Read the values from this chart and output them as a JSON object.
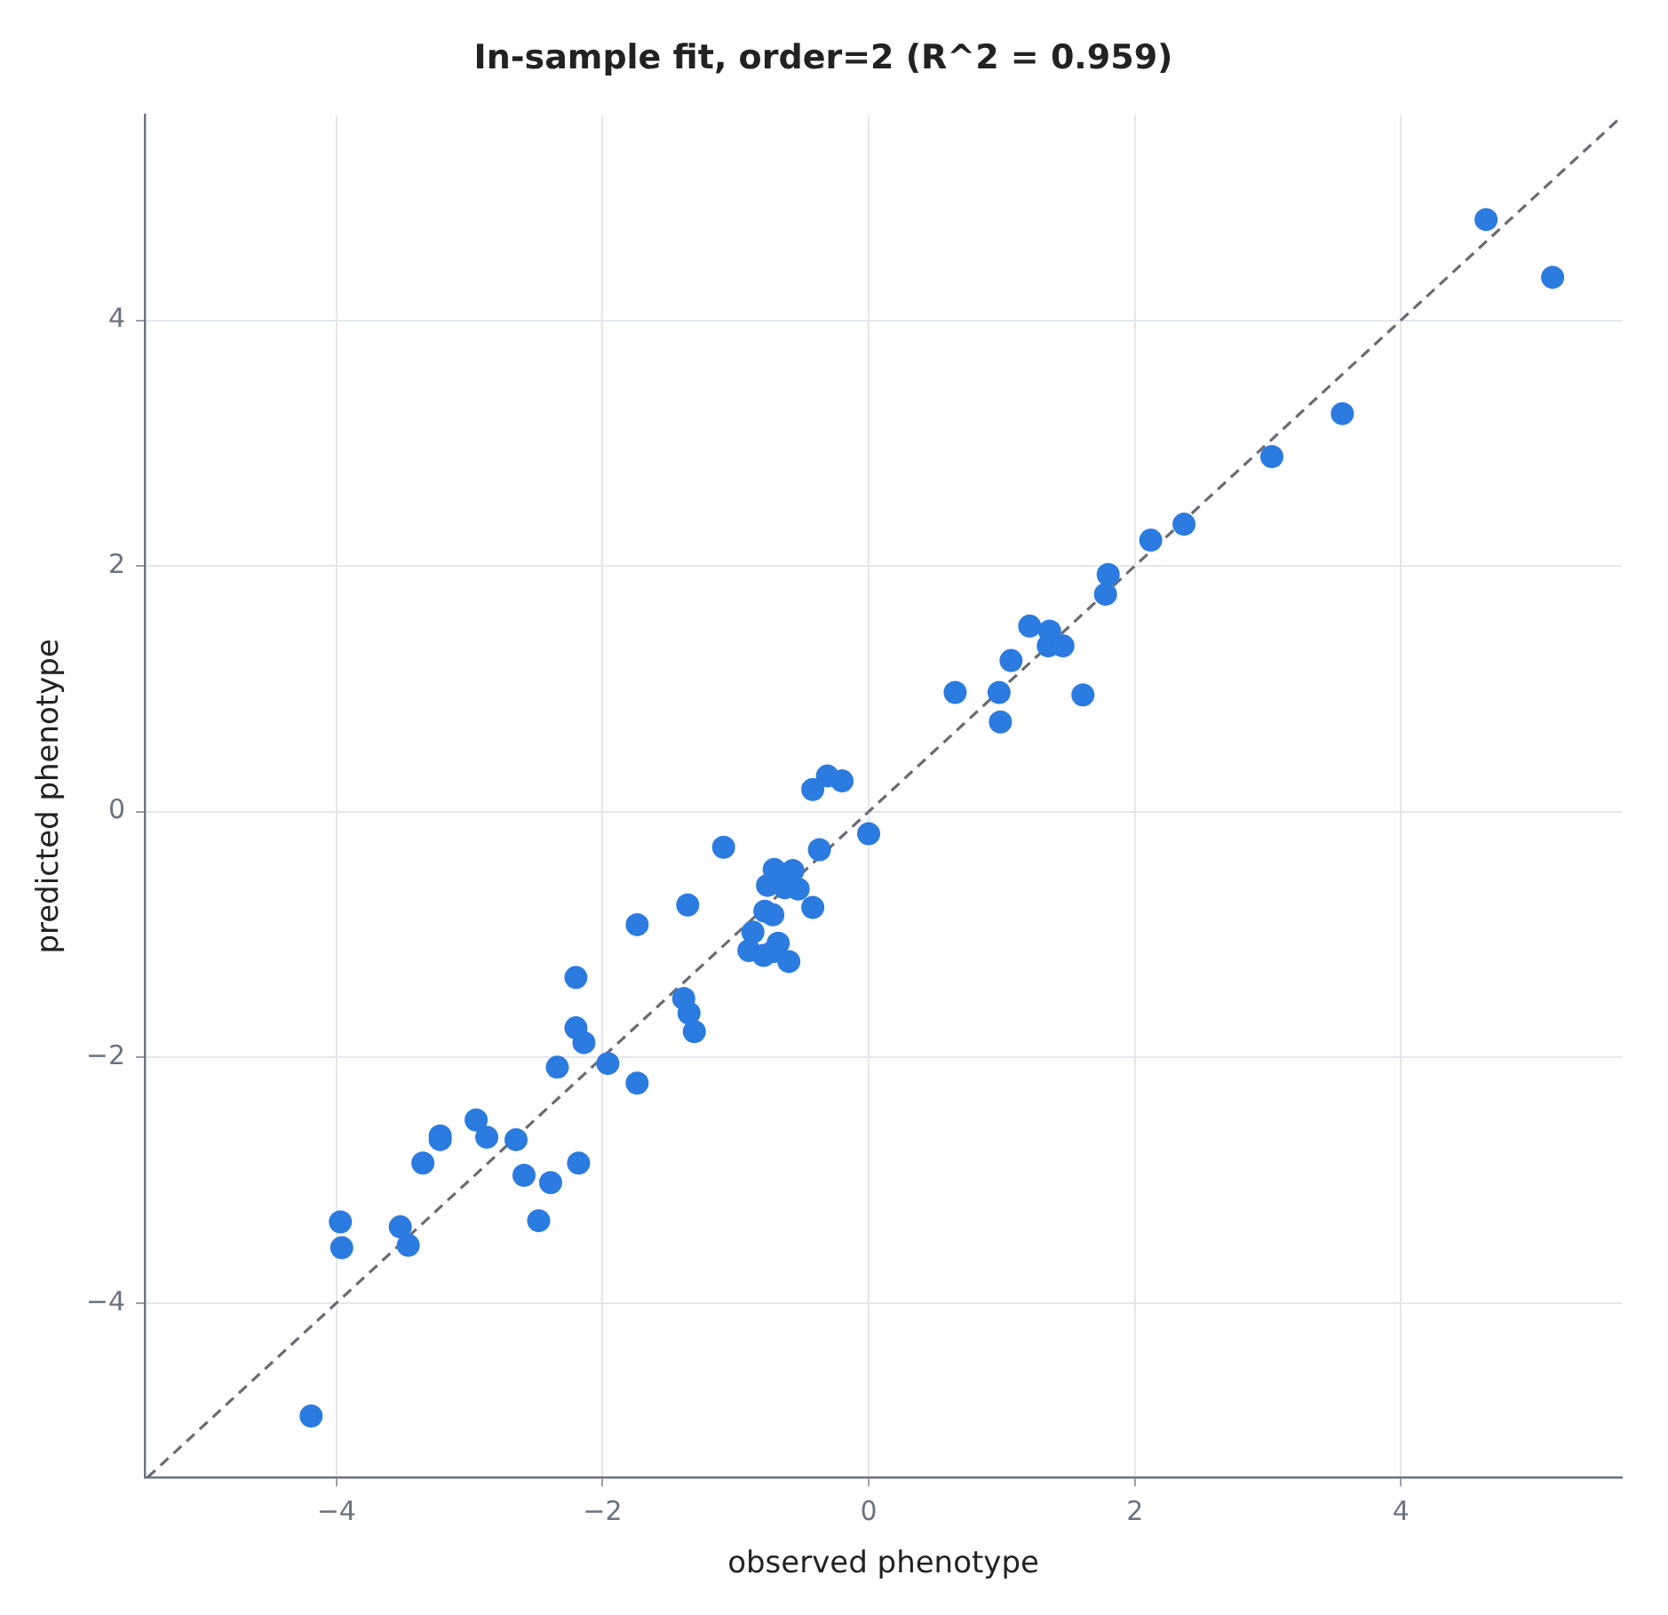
{
  "chart_data": {
    "type": "scatter",
    "title": "In-sample fit, order=2 (R^2 = 0.959)",
    "xlabel": "observed phenotype",
    "ylabel": "predicted phenotype",
    "xlim": [
      -5.44,
      5.66
    ],
    "ylim": [
      -5.42,
      5.67
    ],
    "xticks": [
      -4,
      -2,
      0,
      2,
      4
    ],
    "yticks": [
      -4,
      -2,
      0,
      2,
      4
    ],
    "grid": true,
    "legend": false,
    "series": [
      {
        "type": "scatter",
        "color": "#2b7be0",
        "marker": "circle",
        "x": [
          4.64,
          5.14,
          3.56,
          3.03,
          2.37,
          2.12,
          1.8,
          1.78,
          1.21,
          1.36,
          1.35,
          1.46,
          1.07,
          1.61,
          0.65,
          0.98,
          0.99,
          -0.31,
          -0.2,
          -0.42,
          0.0,
          -1.09,
          -0.37,
          -0.71,
          -0.57,
          -0.76,
          -0.63,
          -0.53,
          -0.42,
          -0.78,
          -0.72,
          -1.74,
          -1.36,
          -0.87,
          -0.68,
          -0.9,
          -0.79,
          -0.72,
          -0.6,
          -2.2,
          -1.39,
          -1.35,
          -1.31,
          -2.2,
          -2.14,
          -2.34,
          -1.96,
          -1.74,
          -2.95,
          -3.22,
          -3.22,
          -2.87,
          -2.65,
          -3.35,
          -2.18,
          -2.59,
          -2.39,
          -3.97,
          -2.48,
          -3.52,
          -3.96,
          -3.46,
          -4.19
        ],
        "values": [
          4.82,
          4.35,
          3.24,
          2.89,
          2.34,
          2.21,
          1.93,
          1.77,
          1.51,
          1.47,
          1.35,
          1.35,
          1.23,
          0.95,
          0.97,
          0.97,
          0.73,
          0.29,
          0.25,
          0.18,
          -0.18,
          -0.29,
          -0.31,
          -0.47,
          -0.48,
          -0.6,
          -0.62,
          -0.63,
          -0.78,
          -0.81,
          -0.84,
          -0.92,
          -0.76,
          -0.98,
          -1.07,
          -1.13,
          -1.17,
          -1.14,
          -1.22,
          -1.35,
          -1.52,
          -1.64,
          -1.79,
          -1.76,
          -1.88,
          -2.08,
          -2.05,
          -2.21,
          -2.51,
          -2.64,
          -2.67,
          -2.65,
          -2.67,
          -2.86,
          -2.86,
          -2.96,
          -3.02,
          -3.34,
          -3.33,
          -3.38,
          -3.55,
          -3.53,
          -4.92
        ]
      },
      {
        "type": "line",
        "color": "#6b6b73",
        "line_style": "dashed",
        "marker": "none",
        "x": [
          -5.42,
          5.66
        ],
        "values": [
          -5.42,
          5.66
        ]
      }
    ]
  }
}
